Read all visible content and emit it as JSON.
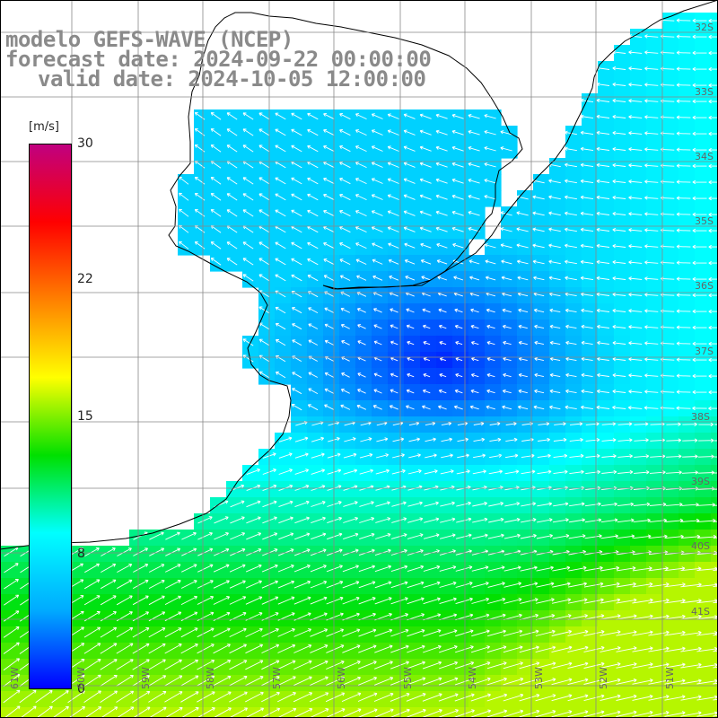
{
  "title": {
    "model": "modelo GEFS-WAVE (NCEP)",
    "forecast": "forecast date: 2024-09-22 00:00:00",
    "valid": "valid date: 2024-10-05 12:00:00"
  },
  "colorbar": {
    "unit": "[m/s]",
    "ticks": [
      "30",
      "22",
      "15",
      "8",
      "0"
    ],
    "tick_values": [
      30,
      22,
      15,
      8,
      0
    ],
    "stops": [
      "#0000ff",
      "#00aaff",
      "#00ffff",
      "#00e000",
      "#ffff00",
      "#ff8000",
      "#ff0000",
      "#c00080"
    ]
  },
  "lat_labels": [
    "32S",
    "33S",
    "34S",
    "35S",
    "36S",
    "37S",
    "38S",
    "39S",
    "40S",
    "41S"
  ],
  "lon_labels": [
    "61W",
    "60W",
    "59W",
    "58W",
    "57W",
    "56W",
    "55W",
    "54W",
    "53W",
    "52W",
    "51W"
  ],
  "colors": {
    "land": "#ffffff",
    "coast": "#000000",
    "grid": "#888888",
    "arrow": "#ffffff",
    "title": "#8a8a8a"
  }
}
